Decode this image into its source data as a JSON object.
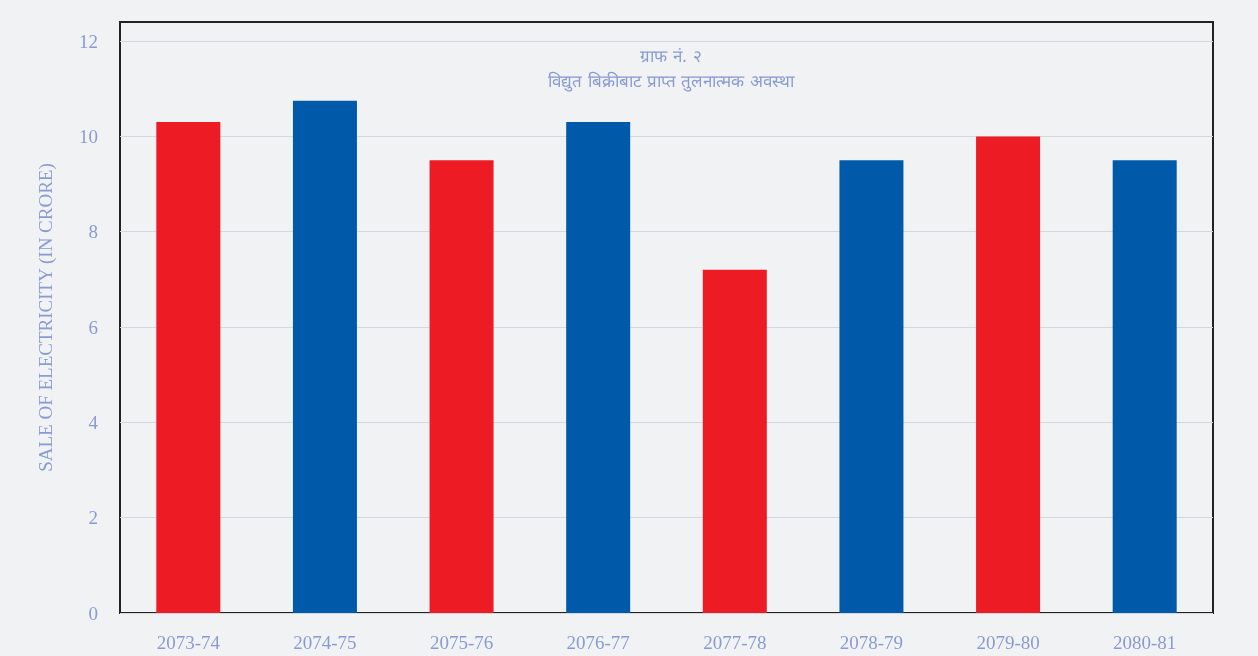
{
  "chart_data": {
    "type": "bar",
    "title": "ग्राफ नं. २",
    "subtitle": "विद्युत बिक्रीबाट प्राप्त तुलनात्मक अवस्था",
    "ylabel": "SALE OF ELECTRICITY (IN CRORE)",
    "categories": [
      "2073-74",
      "2074-75",
      "2075-76",
      "2076-77",
      "2077-78",
      "2078-79",
      "2079-80",
      "2080-81"
    ],
    "values": [
      10.3,
      10.75,
      9.5,
      10.3,
      7.2,
      9.5,
      10,
      9.5
    ],
    "colors": [
      "#ed1c24",
      "#005aa9",
      "#ed1c24",
      "#005aa9",
      "#ed1c24",
      "#005aa9",
      "#ed1c24",
      "#005aa9"
    ],
    "ylim": [
      0,
      12.4
    ],
    "yticks": [
      0,
      2,
      4,
      6,
      8,
      10,
      12
    ],
    "grid": "y"
  }
}
